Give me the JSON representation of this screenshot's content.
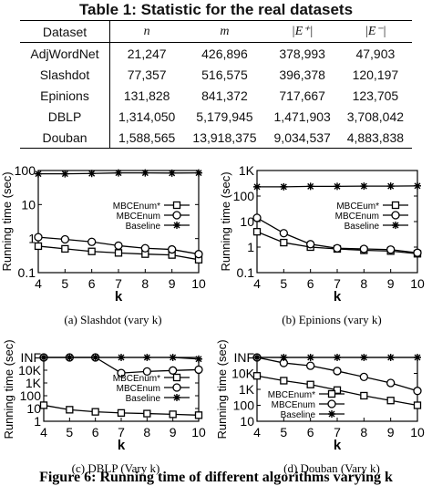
{
  "table": {
    "caption": "Table 1: Statistic for the real datasets",
    "headers": [
      "Dataset",
      "n",
      "m",
      "|E⁺|",
      "|E⁻|"
    ],
    "rows": [
      [
        "AdjWordNet",
        "21,247",
        "426,896",
        "378,993",
        "47,903"
      ],
      [
        "Slashdot",
        "77,357",
        "516,575",
        "396,378",
        "120,197"
      ],
      [
        "Epinions",
        "131,828",
        "841,372",
        "717,667",
        "123,705"
      ],
      [
        "DBLP",
        "1,314,050",
        "5,179,945",
        "1,471,903",
        "3,708,042"
      ],
      [
        "Douban",
        "1,588,565",
        "13,918,375",
        "9,034,537",
        "4,883,838"
      ]
    ]
  },
  "figure_caption": "Figure 6: Running time of different algorithms varying k",
  "chart_data": [
    {
      "type": "line",
      "caption": "(a)  Slashdot (vary k)",
      "xlabel": "k",
      "ylabel": "Running time (sec)",
      "x": [
        4,
        5,
        6,
        7,
        8,
        9,
        10
      ],
      "xlim": [
        4,
        10
      ],
      "yscale": "log",
      "ylim": [
        0.1,
        100
      ],
      "yticks": [
        0.1,
        1,
        10,
        100
      ],
      "ytick_labels": [
        "0.1",
        "1",
        "10",
        "100"
      ],
      "series": [
        {
          "name": "MBCEnum*",
          "marker": "square",
          "values": [
            0.6,
            0.5,
            0.42,
            0.38,
            0.35,
            0.33,
            0.24
          ]
        },
        {
          "name": "MBCEnum",
          "marker": "circle",
          "values": [
            1.1,
            0.95,
            0.8,
            0.62,
            0.52,
            0.48,
            0.35
          ]
        },
        {
          "name": "Baseline",
          "marker": "star",
          "values": [
            80,
            80,
            82,
            85,
            85,
            84,
            85
          ]
        }
      ],
      "legend": "center-right"
    },
    {
      "type": "line",
      "caption": "(b)  Epinions (vary k)",
      "xlabel": "k",
      "ylabel": "Running time (sec)",
      "x": [
        4,
        5,
        6,
        7,
        8,
        9,
        10
      ],
      "xlim": [
        4,
        10
      ],
      "yscale": "log",
      "ylim": [
        0.1,
        1000
      ],
      "yticks": [
        0.1,
        1,
        10,
        100,
        1000
      ],
      "ytick_labels": [
        "0.1",
        "1",
        "10",
        "100",
        "1K"
      ],
      "series": [
        {
          "name": "MBCEum*",
          "marker": "square",
          "values": [
            4,
            1.5,
            1.0,
            0.85,
            0.75,
            0.7,
            0.55
          ]
        },
        {
          "name": "MBCEnum",
          "marker": "circle",
          "values": [
            14,
            3.5,
            1.3,
            0.9,
            0.85,
            0.8,
            0.6
          ]
        },
        {
          "name": "Baseline",
          "marker": "star",
          "values": [
            230,
            230,
            240,
            240,
            245,
            245,
            250
          ]
        }
      ],
      "legend": "center-right"
    },
    {
      "type": "line",
      "caption": "(c)  DBLP (Vary k)",
      "xlabel": "k",
      "ylabel": "Running time (sec)",
      "x": [
        4,
        5,
        6,
        7,
        8,
        9,
        10
      ],
      "xlim": [
        4,
        10
      ],
      "yscale": "log",
      "ylim": [
        1,
        100000
      ],
      "yticks": [
        1,
        10,
        100,
        1000,
        10000,
        100000
      ],
      "ytick_labels": [
        "1",
        "10",
        "100",
        "1K",
        "10K",
        "INF"
      ],
      "series": [
        {
          "name": "MBCEnum*",
          "marker": "square",
          "values": [
            18,
            8,
            5.5,
            4.5,
            4,
            3.5,
            3
          ]
        },
        {
          "name": "MBCEnum",
          "marker": "circle",
          "values": [
            100000,
            100000,
            100000,
            6000,
            8000,
            9500,
            11000
          ]
        },
        {
          "name": "Baseline",
          "marker": "star",
          "values": [
            100000,
            100000,
            100000,
            100000,
            100000,
            100000,
            75000
          ]
        }
      ],
      "legend": "center-right"
    },
    {
      "type": "line",
      "caption": "(d)  Douban (Vary k)",
      "xlabel": "k",
      "ylabel": "Running time (sec)",
      "x": [
        4,
        5,
        6,
        7,
        8,
        9,
        10
      ],
      "xlim": [
        4,
        10
      ],
      "yscale": "log",
      "ylim": [
        10,
        100000
      ],
      "yticks": [
        10,
        100,
        1000,
        10000,
        100000
      ],
      "ytick_labels": [
        "10",
        "100",
        "1K",
        "10K",
        "INF"
      ],
      "series": [
        {
          "name": "MBCEnum*",
          "marker": "square",
          "values": [
            7000,
            3500,
            2000,
            900,
            400,
            200,
            100
          ]
        },
        {
          "name": "MBCEnum",
          "marker": "circle",
          "values": [
            100000,
            45000,
            30000,
            14000,
            6000,
            2500,
            800
          ]
        },
        {
          "name": "Baseline",
          "marker": "star",
          "values": [
            100000,
            100000,
            100000,
            100000,
            100000,
            100000,
            100000
          ]
        }
      ],
      "legend": "bottom-left"
    }
  ]
}
